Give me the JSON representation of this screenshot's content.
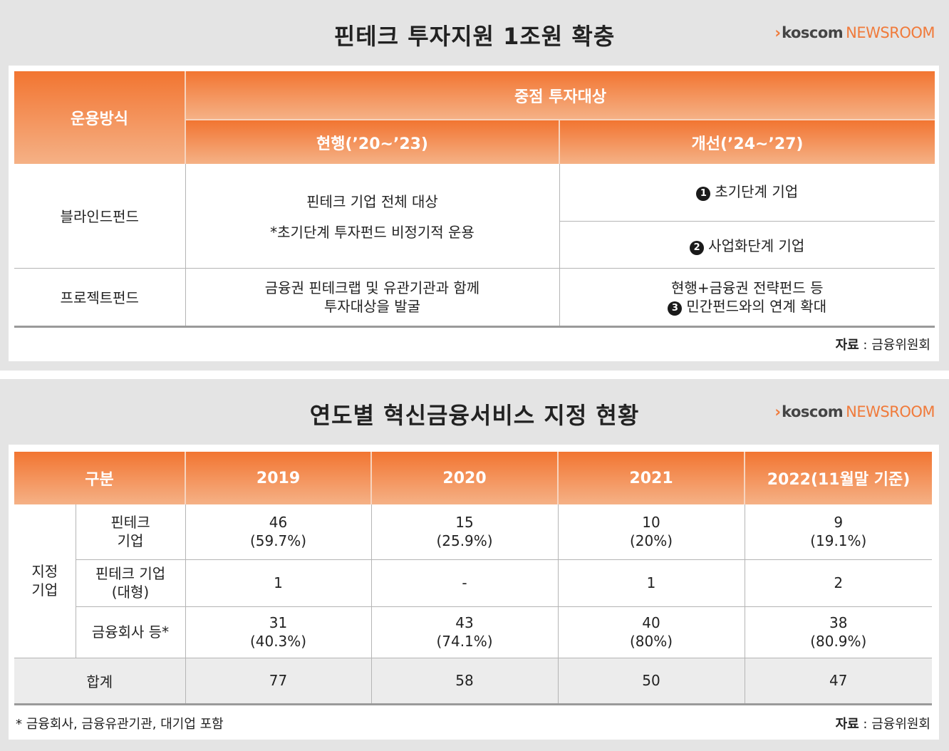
{
  "logo": {
    "arrow": "›",
    "brand": "koscom",
    "newsroom": "NEWSROOM"
  },
  "panel1": {
    "title": "핀테크 투자지원 1조원 확충",
    "header": {
      "col1": "운용방식",
      "group": "중점 투자대상",
      "current": "현행(’20~’23)",
      "improved": "개선(’24~’27)"
    },
    "rows": [
      {
        "method": "블라인드펀드",
        "current_line1": "핀테크 기업 전체 대상",
        "current_line2": "*초기단계 투자펀드 비정기적 운용",
        "improved_a_num": "1",
        "improved_a": "초기단계 기업",
        "improved_b_num": "2",
        "improved_b": "사업화단계 기업"
      },
      {
        "method": "프로젝트펀드",
        "current_line1": "금융권 핀테크랩 및 유관기관과 함께",
        "current_line2": "투자대상을 발굴",
        "improved_line1": "현행+금융권 전략펀드 등",
        "improved_num": "3",
        "improved_line2": "민간펀드와의 연계 확대"
      }
    ],
    "source_label": "자료",
    "source": " : 금융위원회"
  },
  "panel2": {
    "title": "연도별 혁신금융서비스 지정 현황",
    "header": {
      "category": "구분",
      "y2019": "2019",
      "y2020": "2020",
      "y2021": "2021",
      "y2022": "2022(11월말 기준)"
    },
    "group_line1": "지정",
    "group_line2": "기업",
    "rows": [
      {
        "label1": "핀테크",
        "label2": "기업",
        "v2019a": "46",
        "v2019b": "(59.7%)",
        "v2020a": "15",
        "v2020b": "(25.9%)",
        "v2021a": "10",
        "v2021b": "(20%)",
        "v2022a": "9",
        "v2022b": "(19.1%)"
      },
      {
        "label1": "핀테크 기업",
        "label2": "(대형)",
        "v2019": "1",
        "v2020": "-",
        "v2021": "1",
        "v2022": "2"
      },
      {
        "label1": "금융회사 등*",
        "v2019a": "31",
        "v2019b": "(40.3%)",
        "v2020a": "43",
        "v2020b": "(74.1%)",
        "v2021a": "40",
        "v2021b": "(80%)",
        "v2022a": "38",
        "v2022b": "(80.9%)"
      }
    ],
    "total": {
      "label": "합계",
      "v2019": "77",
      "v2020": "58",
      "v2021": "50",
      "v2022": "47"
    },
    "note": "* 금융회사, 금융유관기관, 대기업 포함",
    "source_label": "자료",
    "source": " : 금융위원회"
  }
}
